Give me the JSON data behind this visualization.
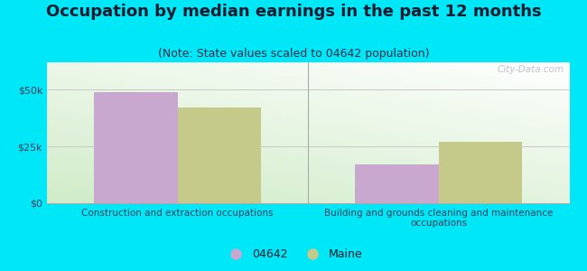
{
  "title": "Occupation by median earnings in the past 12 months",
  "subtitle": "(Note: State values scaled to 04642 population)",
  "categories": [
    "Construction and extraction occupations",
    "Building and grounds cleaning and maintenance\noccupations"
  ],
  "values_04642": [
    49000,
    17000
  ],
  "values_maine": [
    42000,
    27000
  ],
  "color_04642": "#c9a8d0",
  "color_maine": "#c5c98a",
  "yticks": [
    0,
    25000,
    50000
  ],
  "ytick_labels": [
    "$0",
    "$25k",
    "$50k"
  ],
  "ylim": [
    0,
    62000
  ],
  "background_outer": "#00e8f8",
  "legend_label_04642": "04642",
  "legend_label_maine": "Maine",
  "title_fontsize": 13,
  "subtitle_fontsize": 9,
  "bar_width": 0.32,
  "title_color": "#1a1a2e",
  "subtitle_color": "#2a2a4a",
  "tick_color": "#3a3a5a",
  "grid_color": "#c8c8c8",
  "separator_color": "#aaaaaa",
  "watermark_color": "#b8b8c8"
}
